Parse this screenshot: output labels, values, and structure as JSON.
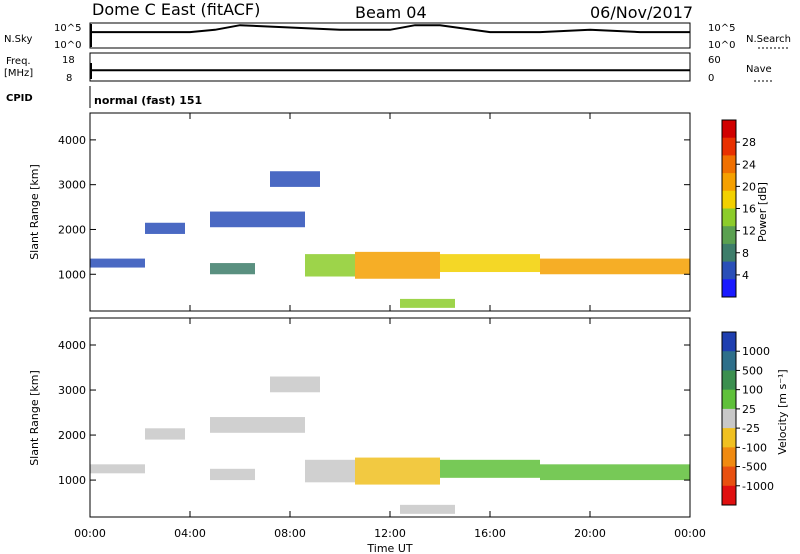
{
  "header": {
    "station": "Dome C East (fitACF)",
    "beam": "Beam 04",
    "date": "06/Nov/2017"
  },
  "top_panel": {
    "left_label": "N.Sky",
    "right_label": "N.Search",
    "left_ticks": [
      "10^5",
      "10^0"
    ],
    "right_ticks": [
      "10^5",
      "10^0"
    ]
  },
  "freq_panel": {
    "left_label_line1": "Freq.",
    "left_label_line2": "[MHz]",
    "right_label": "Nave",
    "left_ticks": [
      "18",
      "8"
    ],
    "right_ticks": [
      "60",
      "0"
    ]
  },
  "cpid": {
    "label": "CPID",
    "value": "normal (fast) 151"
  },
  "power_panel": {
    "ylabel": "Slant Range [km]",
    "yticks": [
      "1000",
      "2000",
      "3000",
      "4000"
    ],
    "colorbar_label": "Power [dB]",
    "colorbar_ticks": [
      "4",
      "8",
      "12",
      "16",
      "20",
      "24",
      "28"
    ],
    "colorbar_colors": [
      "#1a1aff",
      "#2a4fb8",
      "#3d7d6a",
      "#5aa050",
      "#8ccc2a",
      "#f2d000",
      "#f5a000",
      "#f07000",
      "#e83000",
      "#d00000"
    ]
  },
  "velocity_panel": {
    "ylabel": "Slant Range [km]",
    "yticks": [
      "1000",
      "2000",
      "3000",
      "4000"
    ],
    "colorbar_label": "Velocity [m s⁻¹]",
    "colorbar_ticks": [
      "1000",
      "500",
      "100",
      "25",
      "-25",
      "-100",
      "-500",
      "-1000"
    ],
    "colorbar_colors": [
      "#1f3fb0",
      "#2e6f8a",
      "#3b8f4f",
      "#5fc03a",
      "#c8c8c8",
      "#f0c020",
      "#f08a10",
      "#e85010",
      "#e01010"
    ]
  },
  "time_axis": {
    "label": "Time UT",
    "ticks": [
      "00:00",
      "04:00",
      "08:00",
      "12:00",
      "16:00",
      "20:00",
      "00:00"
    ]
  },
  "chart_data": [
    {
      "type": "line",
      "title": "",
      "xlabel": "",
      "ylabel": "N.Sky",
      "x": [
        0,
        2,
        4,
        5,
        6,
        8,
        10,
        12,
        13,
        14,
        16,
        18,
        20,
        22,
        24
      ],
      "series": [
        {
          "name": "N.Sky",
          "values": [
            3,
            3,
            3,
            4,
            6,
            5,
            4,
            4,
            6,
            6,
            3,
            3,
            4,
            3,
            3
          ]
        }
      ]
    },
    {
      "type": "line",
      "title": "",
      "xlabel": "",
      "ylabel": "Freq. [MHz]",
      "x": [
        0,
        4,
        8,
        12,
        16,
        20,
        24
      ],
      "series": [
        {
          "name": "Freq.",
          "values": [
            12,
            12,
            12,
            12,
            12,
            12,
            12
          ]
        }
      ]
    },
    {
      "type": "heatmap",
      "title": "",
      "xlabel": "Time UT",
      "ylabel": "Slant Range [km]",
      "colorbar": "Power [dB]",
      "xlim": [
        0,
        24
      ],
      "ylim": [
        180,
        4600
      ],
      "clim": [
        0,
        32
      ],
      "regions": [
        {
          "t": [
            0.0,
            2.2
          ],
          "r": [
            1150,
            1350
          ],
          "val": 6
        },
        {
          "t": [
            2.2,
            3.8
          ],
          "r": [
            1900,
            2150
          ],
          "val": 6
        },
        {
          "t": [
            4.8,
            8.6
          ],
          "r": [
            2050,
            2400
          ],
          "val": 6
        },
        {
          "t": [
            7.2,
            9.2
          ],
          "r": [
            2950,
            3300
          ],
          "val": 5
        },
        {
          "t": [
            4.8,
            6.6
          ],
          "r": [
            1000,
            1250
          ],
          "val": 7
        },
        {
          "t": [
            8.6,
            10.6
          ],
          "r": [
            950,
            1450
          ],
          "val": 14
        },
        {
          "t": [
            10.6,
            14.0
          ],
          "r": [
            900,
            1500
          ],
          "val": 22
        },
        {
          "t": [
            14.0,
            18.0
          ],
          "r": [
            1050,
            1450
          ],
          "val": 16
        },
        {
          "t": [
            18.0,
            24.0
          ],
          "r": [
            1000,
            1350
          ],
          "val": 22
        },
        {
          "t": [
            12.4,
            14.6
          ],
          "r": [
            250,
            450
          ],
          "val": 14
        }
      ]
    },
    {
      "type": "heatmap",
      "title": "",
      "xlabel": "Time UT",
      "ylabel": "Slant Range [km]",
      "colorbar": "Velocity [m s-1]",
      "xlim": [
        0,
        24
      ],
      "ylim": [
        180,
        4600
      ],
      "clim": [
        -1000,
        1000
      ],
      "regions": [
        {
          "t": [
            0.0,
            2.2
          ],
          "r": [
            1150,
            1350
          ],
          "val": 60
        },
        {
          "t": [
            2.2,
            3.8
          ],
          "r": [
            1900,
            2150
          ],
          "val": 0
        },
        {
          "t": [
            4.8,
            8.6
          ],
          "r": [
            2050,
            2400
          ],
          "val": 0
        },
        {
          "t": [
            7.2,
            9.2
          ],
          "r": [
            2950,
            3300
          ],
          "val": 0
        },
        {
          "t": [
            4.8,
            6.6
          ],
          "r": [
            1000,
            1250
          ],
          "val": -80
        },
        {
          "t": [
            8.6,
            10.6
          ],
          "r": [
            950,
            1450
          ],
          "val": 30
        },
        {
          "t": [
            10.6,
            14.0
          ],
          "r": [
            900,
            1500
          ],
          "val": -200
        },
        {
          "t": [
            14.0,
            18.0
          ],
          "r": [
            1050,
            1450
          ],
          "val": 150
        },
        {
          "t": [
            18.0,
            24.0
          ],
          "r": [
            1000,
            1350
          ],
          "val": 150
        },
        {
          "t": [
            12.4,
            14.6
          ],
          "r": [
            250,
            450
          ],
          "val": 60
        }
      ]
    }
  ]
}
